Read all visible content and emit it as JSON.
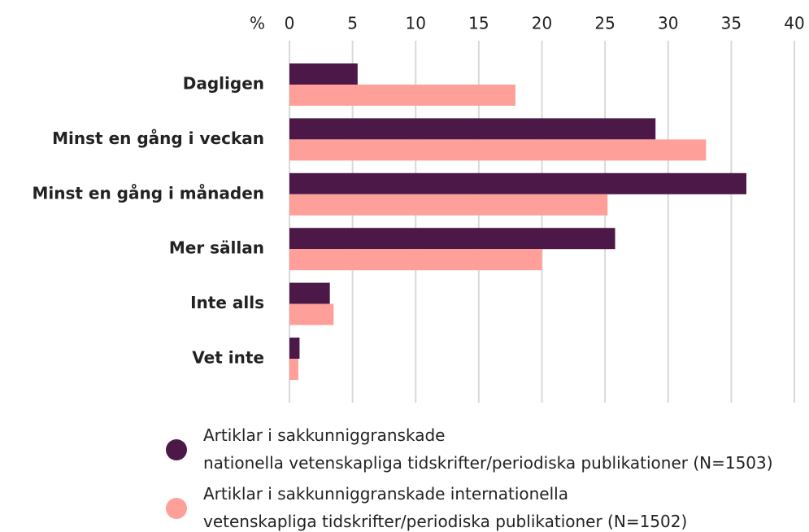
{
  "chart_data": {
    "type": "hbar",
    "xlabel": "%",
    "categories": [
      "Dagligen",
      "Minst en gång i veckan",
      "Minst en gång i månaden",
      "Mer sällan",
      "Inte alls",
      "Vet inte"
    ],
    "series": [
      {
        "name": "Artiklar i sakkunniggranskade nationella vetenskapliga tidskrifter/periodiska publikationer (N=1503)",
        "color": "#4b1848",
        "values": [
          5.4,
          29.0,
          36.2,
          25.8,
          3.2,
          0.8
        ]
      },
      {
        "name": "Artiklar i sakkunniggranskade internationella vetenskapliga tidskrifter/periodiska publikationer (N=1502)",
        "color": "#ff9f9a",
        "values": [
          17.9,
          33.0,
          25.2,
          20.0,
          3.5,
          0.7
        ]
      }
    ],
    "xlim": [
      0,
      40
    ],
    "xticks": [
      0,
      5,
      10,
      15,
      20,
      25,
      30,
      35,
      40
    ],
    "grid": true,
    "legend": "bottom"
  }
}
